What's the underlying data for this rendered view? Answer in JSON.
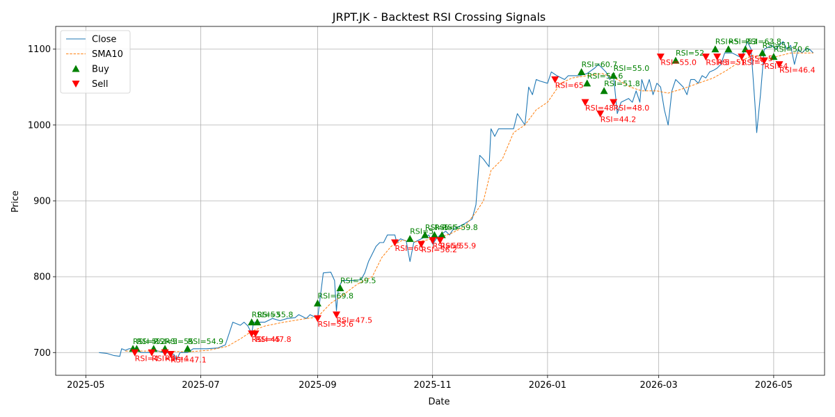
{
  "chart_data": {
    "type": "line",
    "title": "JRPT.JK - Backtest RSI Crossing Signals",
    "xlabel": "Date",
    "ylabel": "Price",
    "ylim": [
      670,
      1130
    ],
    "xlim": [
      "2025-04-15",
      "2026-05-28"
    ],
    "grid": true,
    "legend_position": "top-left",
    "x_ticks": [
      "2025-05",
      "2025-07",
      "2025-09",
      "2025-11",
      "2026-01",
      "2026-03",
      "2026-05"
    ],
    "y_ticks": [
      700,
      800,
      900,
      1000,
      1100
    ],
    "colors": {
      "close": "#1f77b4",
      "sma": "#ff7f0e",
      "buy": "#008000",
      "sell": "#ff0000",
      "grid": "#b0b0b0"
    },
    "legend": [
      {
        "label": "Close",
        "kind": "line"
      },
      {
        "label": "SMA10",
        "kind": "dashed"
      },
      {
        "label": "Buy",
        "kind": "buy"
      },
      {
        "label": "Sell",
        "kind": "sell"
      }
    ],
    "series": [
      {
        "name": "Close",
        "style": "solid",
        "points": [
          [
            "2025-05-08",
            700
          ],
          [
            "2025-05-12",
            699
          ],
          [
            "2025-05-16",
            696
          ],
          [
            "2025-05-19",
            695
          ],
          [
            "2025-05-20",
            705
          ],
          [
            "2025-05-22",
            703
          ],
          [
            "2025-05-24",
            705
          ],
          [
            "2025-05-28",
            705
          ],
          [
            "2025-05-30",
            700
          ],
          [
            "2025-06-03",
            700
          ],
          [
            "2025-06-05",
            700
          ],
          [
            "2025-06-07",
            703
          ],
          [
            "2025-06-11",
            700
          ],
          [
            "2025-06-13",
            700
          ],
          [
            "2025-06-17",
            697
          ],
          [
            "2025-06-18",
            690
          ],
          [
            "2025-06-20",
            700
          ],
          [
            "2025-06-24",
            700
          ],
          [
            "2025-06-27",
            705
          ],
          [
            "2025-07-04",
            705
          ],
          [
            "2025-07-10",
            706
          ],
          [
            "2025-07-14",
            710
          ],
          [
            "2025-07-16",
            725
          ],
          [
            "2025-07-18",
            740
          ],
          [
            "2025-07-22",
            736
          ],
          [
            "2025-07-24",
            740
          ],
          [
            "2025-07-26",
            735
          ],
          [
            "2025-07-28",
            725
          ],
          [
            "2025-07-29",
            740
          ],
          [
            "2025-07-31",
            740
          ],
          [
            "2025-08-04",
            740
          ],
          [
            "2025-08-08",
            745
          ],
          [
            "2025-08-12",
            742
          ],
          [
            "2025-08-16",
            745
          ],
          [
            "2025-08-20",
            746
          ],
          [
            "2025-08-22",
            750
          ],
          [
            "2025-08-26",
            745
          ],
          [
            "2025-08-28",
            750
          ],
          [
            "2025-09-01",
            745
          ],
          [
            "2025-09-02",
            765
          ],
          [
            "2025-09-04",
            805
          ],
          [
            "2025-09-08",
            806
          ],
          [
            "2025-09-10",
            795
          ],
          [
            "2025-09-11",
            755
          ],
          [
            "2025-09-12",
            785
          ],
          [
            "2025-09-14",
            795
          ],
          [
            "2025-09-20",
            795
          ],
          [
            "2025-09-24",
            796
          ],
          [
            "2025-09-26",
            805
          ],
          [
            "2025-09-28",
            820
          ],
          [
            "2025-10-02",
            840
          ],
          [
            "2025-10-04",
            845
          ],
          [
            "2025-10-06",
            845
          ],
          [
            "2025-10-08",
            855
          ],
          [
            "2025-10-12",
            855
          ],
          [
            "2025-10-13",
            845
          ],
          [
            "2025-10-15",
            850
          ],
          [
            "2025-10-18",
            847
          ],
          [
            "2025-10-20",
            820
          ],
          [
            "2025-10-22",
            845
          ],
          [
            "2025-10-26",
            850
          ],
          [
            "2025-10-30",
            855
          ],
          [
            "2025-11-01",
            843
          ],
          [
            "2025-11-03",
            850
          ],
          [
            "2025-11-05",
            855
          ],
          [
            "2025-11-08",
            860
          ],
          [
            "2025-11-10",
            855
          ],
          [
            "2025-11-12",
            863
          ],
          [
            "2025-11-14",
            865
          ],
          [
            "2025-11-18",
            870
          ],
          [
            "2025-11-22",
            876
          ],
          [
            "2025-11-24",
            895
          ],
          [
            "2025-11-26",
            960
          ],
          [
            "2025-11-28",
            955
          ],
          [
            "2025-12-01",
            945
          ],
          [
            "2025-12-02",
            995
          ],
          [
            "2025-12-04",
            985
          ],
          [
            "2025-12-06",
            995
          ],
          [
            "2025-12-10",
            995
          ],
          [
            "2025-12-14",
            995
          ],
          [
            "2025-12-16",
            1015
          ],
          [
            "2025-12-20",
            1000
          ],
          [
            "2025-12-22",
            1050
          ],
          [
            "2025-12-24",
            1040
          ],
          [
            "2025-12-26",
            1060
          ],
          [
            "2025-12-28",
            1058
          ],
          [
            "2026-01-01",
            1055
          ],
          [
            "2026-01-03",
            1070
          ],
          [
            "2026-01-06",
            1065
          ],
          [
            "2026-01-10",
            1060
          ],
          [
            "2026-01-12",
            1065
          ],
          [
            "2026-01-18",
            1065
          ],
          [
            "2026-01-22",
            1068
          ],
          [
            "2026-01-26",
            1075
          ],
          [
            "2026-01-28",
            1080
          ],
          [
            "2026-02-01",
            1070
          ],
          [
            "2026-02-03",
            1060
          ],
          [
            "2026-02-05",
            1065
          ],
          [
            "2026-02-07",
            1015
          ],
          [
            "2026-02-09",
            1030
          ],
          [
            "2026-02-13",
            1035
          ],
          [
            "2026-02-15",
            1030
          ],
          [
            "2026-02-17",
            1045
          ],
          [
            "2026-02-19",
            1030
          ],
          [
            "2026-02-20",
            1060
          ],
          [
            "2026-02-22",
            1045
          ],
          [
            "2026-02-24",
            1060
          ],
          [
            "2026-02-26",
            1040
          ],
          [
            "2026-02-28",
            1055
          ],
          [
            "2026-03-02",
            1050
          ],
          [
            "2026-03-04",
            1020
          ],
          [
            "2026-03-06",
            1000
          ],
          [
            "2026-03-08",
            1045
          ],
          [
            "2026-03-10",
            1060
          ],
          [
            "2026-03-12",
            1055
          ],
          [
            "2026-03-14",
            1050
          ],
          [
            "2026-03-16",
            1040
          ],
          [
            "2026-03-18",
            1060
          ],
          [
            "2026-03-20",
            1060
          ],
          [
            "2026-03-22",
            1055
          ],
          [
            "2026-03-24",
            1065
          ],
          [
            "2026-03-26",
            1062
          ],
          [
            "2026-03-28",
            1070
          ],
          [
            "2026-03-30",
            1072
          ],
          [
            "2026-04-01",
            1075
          ],
          [
            "2026-04-03",
            1080
          ],
          [
            "2026-04-05",
            1095
          ],
          [
            "2026-04-09",
            1095
          ],
          [
            "2026-04-13",
            1090
          ],
          [
            "2026-04-15",
            1095
          ],
          [
            "2026-04-17",
            1110
          ],
          [
            "2026-04-19",
            1100
          ],
          [
            "2026-04-21",
            1030
          ],
          [
            "2026-04-22",
            990
          ],
          [
            "2026-04-24",
            1040
          ],
          [
            "2026-04-26",
            1100
          ],
          [
            "2026-04-30",
            1105
          ],
          [
            "2026-05-02",
            1100
          ],
          [
            "2026-05-06",
            1110
          ],
          [
            "2026-05-08",
            1100
          ],
          [
            "2026-05-10",
            1105
          ],
          [
            "2026-05-12",
            1080
          ],
          [
            "2026-05-14",
            1100
          ],
          [
            "2026-05-16",
            1095
          ],
          [
            "2026-05-18",
            1100
          ],
          [
            "2026-05-20",
            1100
          ],
          [
            "2026-05-22",
            1095
          ]
        ]
      },
      {
        "name": "SMA10",
        "style": "dashed",
        "points": [
          [
            "2025-05-22",
            702
          ],
          [
            "2025-06-05",
            702
          ],
          [
            "2025-06-25",
            701
          ],
          [
            "2025-07-05",
            703
          ],
          [
            "2025-07-15",
            708
          ],
          [
            "2025-07-22",
            718
          ],
          [
            "2025-07-28",
            728
          ],
          [
            "2025-08-04",
            735
          ],
          [
            "2025-08-14",
            740
          ],
          [
            "2025-08-24",
            744
          ],
          [
            "2025-09-01",
            747
          ],
          [
            "2025-09-08",
            765
          ],
          [
            "2025-09-14",
            775
          ],
          [
            "2025-09-22",
            790
          ],
          [
            "2025-09-30",
            800
          ],
          [
            "2025-10-05",
            825
          ],
          [
            "2025-10-10",
            840
          ],
          [
            "2025-10-16",
            848
          ],
          [
            "2025-10-24",
            846
          ],
          [
            "2025-11-01",
            850
          ],
          [
            "2025-11-10",
            856
          ],
          [
            "2025-11-18",
            866
          ],
          [
            "2025-11-24",
            885
          ],
          [
            "2025-11-28",
            900
          ],
          [
            "2025-12-02",
            940
          ],
          [
            "2025-12-08",
            955
          ],
          [
            "2025-12-14",
            990
          ],
          [
            "2025-12-20",
            1000
          ],
          [
            "2025-12-26",
            1020
          ],
          [
            "2026-01-01",
            1030
          ],
          [
            "2026-01-08",
            1055
          ],
          [
            "2026-01-14",
            1062
          ],
          [
            "2026-01-22",
            1065
          ],
          [
            "2026-01-30",
            1068
          ],
          [
            "2026-02-07",
            1060
          ],
          [
            "2026-02-14",
            1050
          ],
          [
            "2026-02-20",
            1045
          ],
          [
            "2026-02-28",
            1045
          ],
          [
            "2026-03-06",
            1042
          ],
          [
            "2026-03-14",
            1048
          ],
          [
            "2026-03-22",
            1055
          ],
          [
            "2026-03-30",
            1062
          ],
          [
            "2026-04-06",
            1072
          ],
          [
            "2026-04-14",
            1085
          ],
          [
            "2026-04-20",
            1092
          ],
          [
            "2026-04-26",
            1085
          ],
          [
            "2026-05-02",
            1090
          ],
          [
            "2026-05-10",
            1095
          ],
          [
            "2026-05-22",
            1095
          ]
        ]
      }
    ],
    "buy_signals": [
      {
        "date": "2025-05-26",
        "price": 705,
        "label": "RSI=5"
      },
      {
        "date": "2025-05-28",
        "price": 705,
        "label": "RSI=52"
      },
      {
        "date": "2025-06-06",
        "price": 705,
        "label": "RSI=5"
      },
      {
        "date": "2025-06-12",
        "price": 705,
        "label": "RSI=55"
      },
      {
        "date": "2025-06-24",
        "price": 705,
        "label": "RSI=54.9"
      },
      {
        "date": "2025-07-28",
        "price": 740,
        "label": "RSI=53"
      },
      {
        "date": "2025-07-31",
        "price": 740,
        "label": "RSI=55.8"
      },
      {
        "date": "2025-09-01",
        "price": 765,
        "label": "RSI=69.8"
      },
      {
        "date": "2025-09-13",
        "price": 785,
        "label": "RSI=59.5"
      },
      {
        "date": "2025-10-20",
        "price": 850,
        "label": "RSI=5"
      },
      {
        "date": "2025-10-28",
        "price": 855,
        "label": "RSI=5"
      },
      {
        "date": "2025-11-02",
        "price": 855,
        "label": "RSI=5"
      },
      {
        "date": "2025-11-06",
        "price": 855,
        "label": "RSI=59.8"
      },
      {
        "date": "2026-01-19",
        "price": 1070,
        "label": "RSI=60.7"
      },
      {
        "date": "2026-01-22",
        "price": 1055,
        "label": "RSI=56.6"
      },
      {
        "date": "2026-01-31",
        "price": 1045,
        "label": "RSI=51.8"
      },
      {
        "date": "2026-02-05",
        "price": 1065,
        "label": "RSI=55.0"
      },
      {
        "date": "2026-03-10",
        "price": 1085,
        "label": "RSI=52"
      },
      {
        "date": "2026-03-31",
        "price": 1100,
        "label": "RSI=5"
      },
      {
        "date": "2026-04-07",
        "price": 1100,
        "label": "RSI=53"
      },
      {
        "date": "2026-04-16",
        "price": 1100,
        "label": "RSI=63.8"
      },
      {
        "date": "2026-04-25",
        "price": 1095,
        "label": "RSI=51.7"
      },
      {
        "date": "2026-05-01",
        "price": 1090,
        "label": "RSI=50.6"
      }
    ],
    "sell_signals": [
      {
        "date": "2025-05-27",
        "price": 700,
        "label": "RSI=4"
      },
      {
        "date": "2025-06-05",
        "price": 700,
        "label": "RSI=4"
      },
      {
        "date": "2025-06-12",
        "price": 700,
        "label": "RSI=4"
      },
      {
        "date": "2025-06-15",
        "price": 698,
        "label": "RSI=47.1"
      },
      {
        "date": "2025-07-28",
        "price": 725,
        "label": "RSI=45"
      },
      {
        "date": "2025-07-30",
        "price": 725,
        "label": "RSI=47.8"
      },
      {
        "date": "2025-09-01",
        "price": 745,
        "label": "RSI=55.6"
      },
      {
        "date": "2025-09-11",
        "price": 750,
        "label": "RSI=47.5"
      },
      {
        "date": "2025-10-12",
        "price": 845,
        "label": "RSI=60"
      },
      {
        "date": "2025-10-26",
        "price": 843,
        "label": "RSI=56.2"
      },
      {
        "date": "2025-11-01",
        "price": 848,
        "label": "RSI=55"
      },
      {
        "date": "2025-11-05",
        "price": 848,
        "label": "RSI=55.9"
      },
      {
        "date": "2026-01-05",
        "price": 1060,
        "label": "RSI=65"
      },
      {
        "date": "2026-01-21",
        "price": 1030,
        "label": "RSI=48"
      },
      {
        "date": "2026-01-29",
        "price": 1015,
        "label": "RSI=44.2"
      },
      {
        "date": "2026-02-05",
        "price": 1030,
        "label": "RSI=48.0"
      },
      {
        "date": "2026-03-02",
        "price": 1090,
        "label": "RSI=55.0"
      },
      {
        "date": "2026-03-26",
        "price": 1090,
        "label": "RSI=5"
      },
      {
        "date": "2026-04-01",
        "price": 1090,
        "label": "RSI=51"
      },
      {
        "date": "2026-04-14",
        "price": 1090,
        "label": "RSI=5"
      },
      {
        "date": "2026-04-18",
        "price": 1095,
        "label": "RSI=5"
      },
      {
        "date": "2026-04-26",
        "price": 1085,
        "label": "RSI=4"
      },
      {
        "date": "2026-05-04",
        "price": 1080,
        "label": "RSI=46.4"
      }
    ]
  }
}
